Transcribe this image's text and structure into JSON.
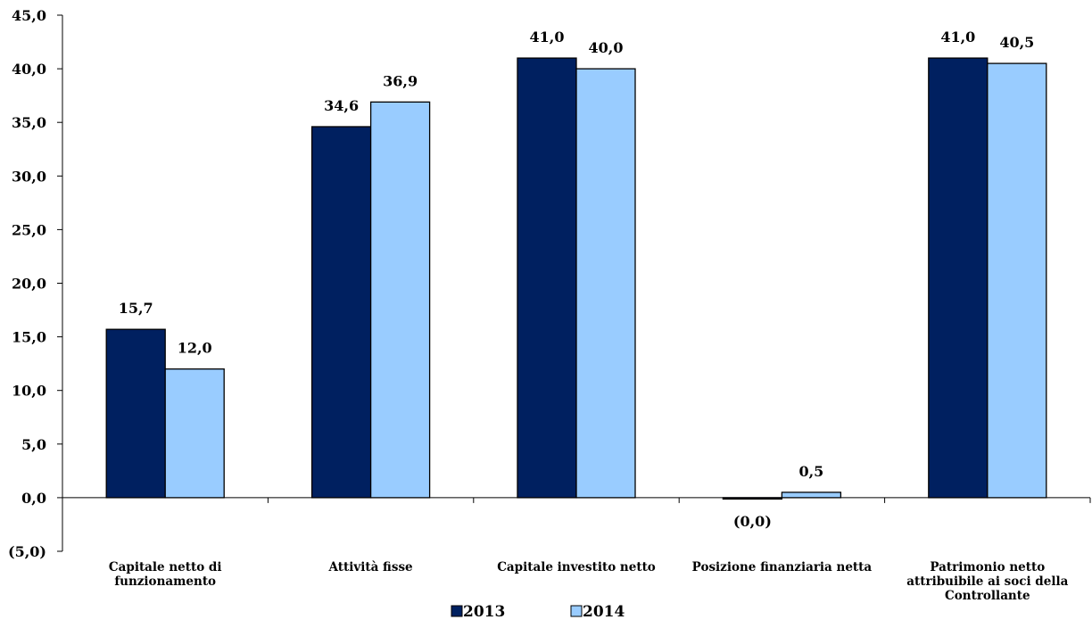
{
  "chart_data": {
    "type": "bar",
    "categories": [
      [
        "Capitale netto di",
        "funzionamento"
      ],
      [
        "Attività fisse"
      ],
      [
        "Capitale investito netto"
      ],
      [
        "Posizione finanziaria netta"
      ],
      [
        "Patrimonio netto",
        "attribuibile ai soci della",
        "Controllante"
      ]
    ],
    "series": [
      {
        "name": "2013",
        "color": "#002060",
        "values": [
          15.7,
          34.6,
          41.0,
          -0.05,
          41.0
        ],
        "labels": [
          "15,7",
          "34,6",
          "41,0",
          "(0,0)",
          "41,0"
        ]
      },
      {
        "name": "2014",
        "color": "#99CCFF",
        "values": [
          12.0,
          36.9,
          40.0,
          0.5,
          40.5
        ],
        "labels": [
          "12,0",
          "36,9",
          "40,0",
          "0,5",
          "40,5"
        ]
      }
    ],
    "ylim": [
      -5,
      45
    ],
    "yticks": [
      -5,
      0,
      5,
      10,
      15,
      20,
      25,
      30,
      35,
      40,
      45
    ],
    "ytick_labels": [
      "(5,0)",
      "0,0",
      "5,0",
      "10,0",
      "15,0",
      "20,0",
      "25,0",
      "30,0",
      "35,0",
      "40,0",
      "45,0"
    ],
    "title": "",
    "xlabel": "",
    "ylabel": "",
    "grid": false,
    "legend": "bottom-center"
  }
}
